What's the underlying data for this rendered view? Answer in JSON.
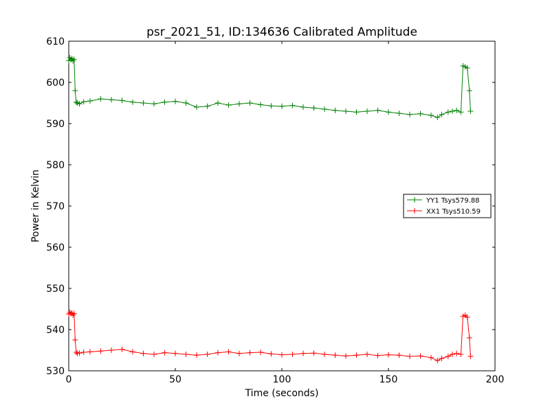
{
  "chart_data": {
    "type": "line",
    "title": "psr_2021_51, ID:134636 Calibrated Amplitude",
    "xlabel": "Time (seconds)",
    "ylabel": "Power in Kelvin",
    "xlim": [
      0,
      200
    ],
    "ylim": [
      530,
      610
    ],
    "xticks": [
      0,
      50,
      100,
      150,
      200
    ],
    "yticks": [
      530,
      540,
      550,
      560,
      570,
      580,
      590,
      600,
      610
    ],
    "grid": false,
    "legend": "center-right",
    "marker": "+",
    "series": [
      {
        "name": "YY1 Tsys579.88",
        "color": "#008000",
        "x": [
          0,
          0.5,
          1,
          1.5,
          2,
          2.5,
          3,
          3.5,
          4,
          5,
          7,
          10,
          15,
          20,
          25,
          30,
          35,
          40,
          45,
          50,
          55,
          60,
          65,
          70,
          75,
          80,
          85,
          90,
          95,
          100,
          105,
          110,
          115,
          120,
          125,
          130,
          135,
          140,
          145,
          150,
          155,
          160,
          165,
          170,
          173,
          175,
          178,
          180,
          182,
          184,
          185,
          186,
          187,
          188,
          188.5
        ],
        "y": [
          605.3,
          606,
          605.5,
          605.8,
          605.2,
          605.6,
          598,
          595.2,
          595,
          594.8,
          595.3,
          595.5,
          596,
          595.8,
          595.6,
          595.2,
          595,
          594.8,
          595.2,
          595.4,
          595,
          594,
          594.2,
          595,
          594.5,
          594.8,
          595,
          594.6,
          594.3,
          594.2,
          594.4,
          594,
          593.8,
          593.5,
          593.2,
          593,
          592.8,
          593,
          593.2,
          592.8,
          592.5,
          592.2,
          592.4,
          592,
          591.5,
          592.2,
          592.8,
          593,
          593.2,
          592.8,
          604,
          603.8,
          603.5,
          598,
          593
        ]
      },
      {
        "name": "XX1 Tsys510.59",
        "color": "#ff0000",
        "x": [
          0,
          0.5,
          1,
          1.5,
          2,
          2.5,
          3,
          3.5,
          4,
          5,
          7,
          10,
          15,
          20,
          25,
          30,
          35,
          40,
          45,
          50,
          55,
          60,
          65,
          70,
          75,
          80,
          85,
          90,
          95,
          100,
          105,
          110,
          115,
          120,
          125,
          130,
          135,
          140,
          145,
          150,
          155,
          160,
          165,
          170,
          173,
          175,
          178,
          180,
          182,
          184,
          185,
          186,
          187,
          188,
          188.5
        ],
        "y": [
          543.8,
          544.2,
          543.9,
          544,
          543.5,
          543.9,
          537.5,
          534.5,
          534.2,
          534.3,
          534.5,
          534.6,
          534.8,
          535,
          535.2,
          534.6,
          534.2,
          534,
          534.4,
          534.2,
          534,
          533.8,
          534,
          534.4,
          534.6,
          534.2,
          534.4,
          534.5,
          534.1,
          533.9,
          534,
          534.2,
          534.3,
          534,
          533.8,
          533.6,
          533.8,
          534,
          533.7,
          533.9,
          533.8,
          533.5,
          533.6,
          533.2,
          532.5,
          533,
          533.5,
          534,
          534.2,
          534,
          543.2,
          543.5,
          543,
          538,
          533.5
        ]
      }
    ]
  }
}
